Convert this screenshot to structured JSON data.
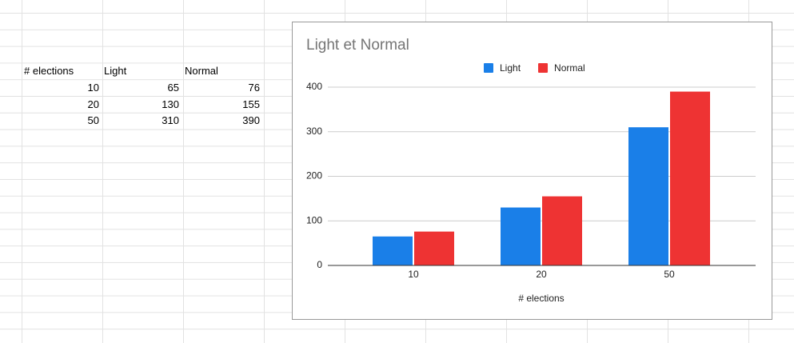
{
  "table": {
    "header": [
      "# elections",
      "Light",
      "Normal"
    ],
    "rows": [
      [
        10,
        65,
        76
      ],
      [
        20,
        130,
        155
      ],
      [
        50,
        310,
        390
      ]
    ]
  },
  "chart_data": {
    "type": "bar",
    "title": "Light et Normal",
    "x_label": "# elections",
    "categories": [
      "10",
      "20",
      "50"
    ],
    "series": [
      {
        "name": "Light",
        "color": "#1a7fe8",
        "values": [
          65,
          130,
          310
        ]
      },
      {
        "name": "Normal",
        "color": "#ee3333",
        "values": [
          76,
          155,
          390
        ]
      }
    ],
    "ylim": [
      0,
      400
    ],
    "yticks": [
      0,
      100,
      200,
      300,
      400
    ],
    "grid": true,
    "legend": "top"
  }
}
